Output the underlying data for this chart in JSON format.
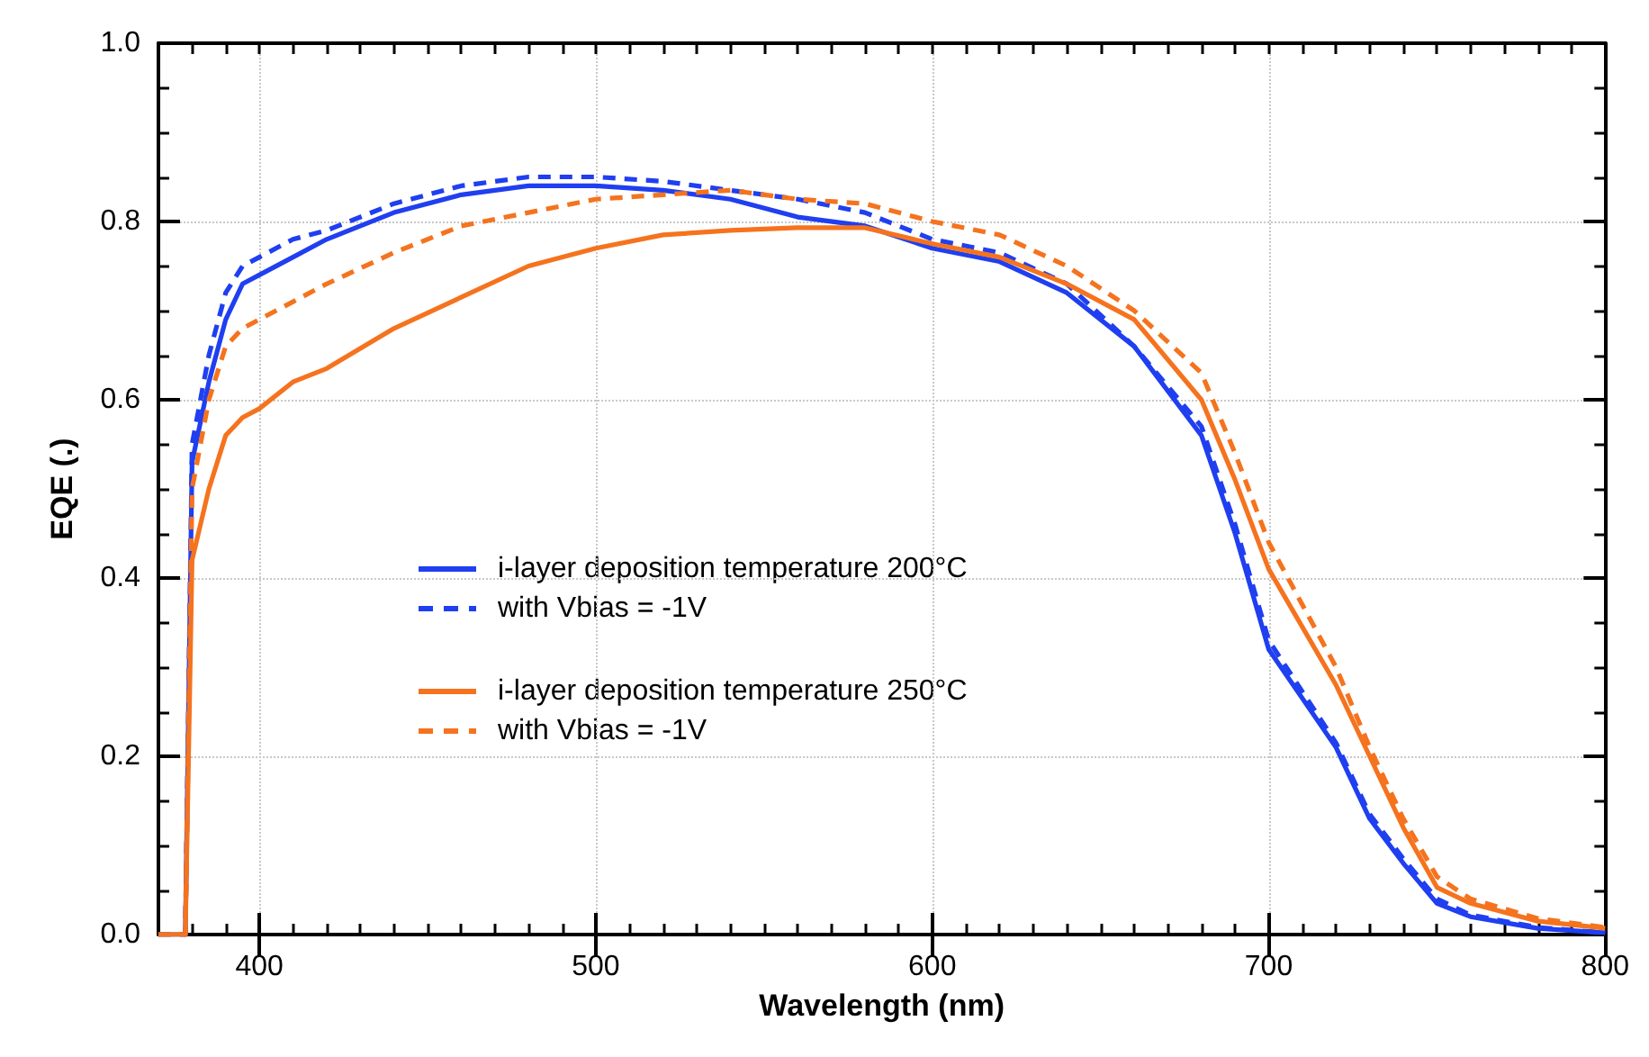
{
  "chart_data": {
    "type": "line",
    "xlabel": "Wavelength (nm)",
    "ylabel": "EQE (.)",
    "xlim": [
      370,
      800
    ],
    "xticks": [
      400,
      500,
      600,
      700,
      800
    ],
    "ylim": [
      0,
      1
    ],
    "yticks": [
      {
        "value": 0,
        "label": "0.0"
      },
      {
        "value": 0.2,
        "label": "0.2"
      },
      {
        "value": 0.4,
        "label": "0.4"
      },
      {
        "value": 0.6,
        "label": "0.6"
      },
      {
        "value": 0.8,
        "label": "0.8"
      },
      {
        "value": 1,
        "label": "1.0"
      }
    ],
    "grid": true,
    "legend": "left",
    "marker": "none",
    "x": [
      370,
      378,
      380,
      385,
      390,
      395,
      400,
      410,
      420,
      440,
      460,
      480,
      500,
      520,
      540,
      560,
      580,
      600,
      620,
      640,
      660,
      680,
      690,
      700,
      720,
      730,
      740,
      750,
      760,
      780,
      800
    ],
    "series": [
      {
        "name": "i-layer deposition temperature 200°C",
        "color": "#1f3ff0",
        "line_style": "solid",
        "values": [
          0,
          0,
          0.53,
          0.62,
          0.69,
          0.73,
          0.74,
          0.76,
          0.78,
          0.81,
          0.83,
          0.84,
          0.84,
          0.835,
          0.825,
          0.805,
          0.795,
          0.77,
          0.755,
          0.72,
          0.66,
          0.56,
          0.45,
          0.32,
          0.21,
          0.13,
          0.08,
          0.035,
          0.02,
          0.007,
          0.002
        ]
      },
      {
        "name": "with Vbias = -1V",
        "color": "#1f3ff0",
        "line_style": "dashed",
        "values": [
          0,
          0,
          0.55,
          0.65,
          0.72,
          0.75,
          0.76,
          0.78,
          0.79,
          0.82,
          0.84,
          0.85,
          0.85,
          0.845,
          0.835,
          0.825,
          0.81,
          0.78,
          0.765,
          0.73,
          0.66,
          0.57,
          0.46,
          0.33,
          0.215,
          0.135,
          0.085,
          0.04,
          0.022,
          0.008,
          0.002
        ]
      },
      {
        "name": "i-layer deposition temperature 250°C",
        "color": "#f5731e",
        "line_style": "solid",
        "values": [
          0,
          0,
          0.42,
          0.5,
          0.56,
          0.58,
          0.59,
          0.62,
          0.635,
          0.68,
          0.715,
          0.75,
          0.77,
          0.785,
          0.79,
          0.793,
          0.793,
          0.775,
          0.76,
          0.73,
          0.69,
          0.6,
          0.51,
          0.41,
          0.28,
          0.2,
          0.12,
          0.053,
          0.035,
          0.015,
          0.007
        ]
      },
      {
        "name": "with Vbias = -1V",
        "color": "#f5731e",
        "line_style": "dashed",
        "values": [
          0,
          0,
          0.5,
          0.6,
          0.66,
          0.68,
          0.69,
          0.71,
          0.73,
          0.765,
          0.795,
          0.81,
          0.825,
          0.83,
          0.835,
          0.825,
          0.82,
          0.8,
          0.785,
          0.75,
          0.7,
          0.63,
          0.54,
          0.44,
          0.3,
          0.21,
          0.13,
          0.065,
          0.04,
          0.018,
          0.008
        ]
      }
    ]
  }
}
